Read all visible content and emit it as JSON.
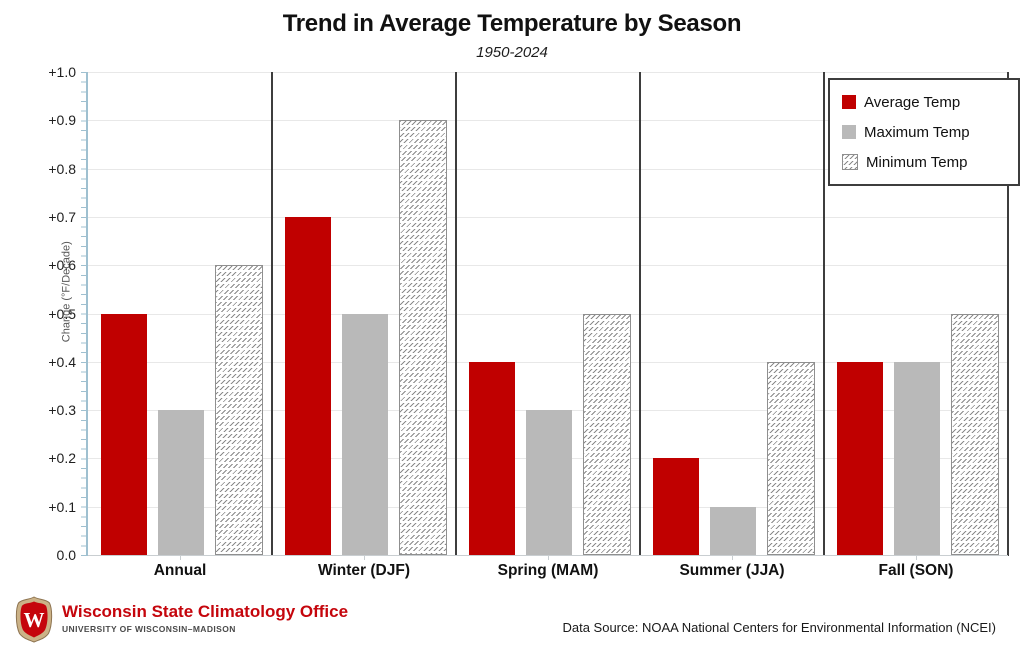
{
  "title": "Trend in Average Temperature by Season",
  "subtitle": "1950-2024",
  "chart_data": {
    "type": "bar",
    "categories": [
      "Annual",
      "Winter (DJF)",
      "Spring (MAM)",
      "Summer (JJA)",
      "Fall (SON)"
    ],
    "series": [
      {
        "name": "Average Temp",
        "values": [
          0.5,
          0.7,
          0.4,
          0.2,
          0.4
        ],
        "color": "#c00000",
        "style": "solid"
      },
      {
        "name": "Maximum Temp",
        "values": [
          0.3,
          0.5,
          0.3,
          0.1,
          0.4
        ],
        "color": "#b9b9b9",
        "style": "solid"
      },
      {
        "name": "Minimum Temp",
        "values": [
          0.6,
          0.9,
          0.5,
          0.4,
          0.5
        ],
        "color": "#ffffff",
        "style": "hatched"
      }
    ],
    "title": "Trend in Average Temperature by Season",
    "xlabel": "",
    "ylabel": "Change (°F/Decade)",
    "ylim": [
      0.0,
      1.0
    ],
    "ytick_step": 0.1,
    "ytick_labels": [
      "0.0",
      "+0.1",
      "+0.2",
      "+0.3",
      "+0.4",
      "+0.5",
      "+0.6",
      "+0.7",
      "+0.8",
      "+0.9",
      "+1.0"
    ],
    "grid": true,
    "legend_position": "top-right",
    "panel_separators": true
  },
  "footer": {
    "org_name": "Wisconsin State Climatology Office",
    "org_sub": "UNIVERSITY OF WISCONSIN–MADISON",
    "logo_letter": "W",
    "data_source": "Data Source: NOAA National Centers for Environmental Information (NCEI)"
  },
  "colors": {
    "bar_red": "#c00000",
    "bar_gray": "#b9b9b9",
    "hatch_stroke": "#8a8a8a",
    "axis_blue": "#9fc0d0",
    "gridline": "#e8e8e8",
    "separator": "#3d3d3d",
    "uw_red": "#c5050c",
    "logo_tan": "#cbb287"
  }
}
